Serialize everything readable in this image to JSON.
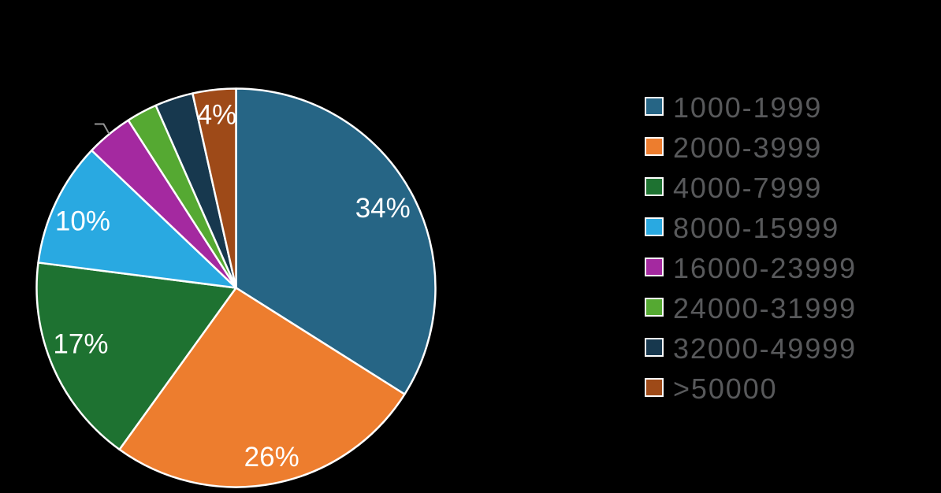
{
  "background_color": "#000000",
  "chart_data": {
    "type": "pie",
    "title": "",
    "categories": [
      "1000-1999",
      "2000-3999",
      "4000-7999",
      "8000-15999",
      "16000-23999",
      "24000-31999",
      "32000-49999",
      ">50000"
    ],
    "values": [
      34,
      26,
      17.1,
      10.1,
      3.8,
      2.5,
      3.1,
      3.5
    ],
    "slice_labels": [
      "34%",
      "26%",
      "17%",
      "10%",
      "",
      "",
      "",
      "4%"
    ],
    "colors": [
      "#266585",
      "#ed7d2e",
      "#1e7231",
      "#29a9e1",
      "#a429a0",
      "#55a932",
      "#17384e",
      "#9e4a18"
    ],
    "label_color": "#ffffff",
    "legend_text_color": "#58595b",
    "legend_position": "right",
    "start_angle_deg": 0,
    "direction": "clockwise",
    "unlabeled_slice_leader_line": "16000-23999"
  }
}
